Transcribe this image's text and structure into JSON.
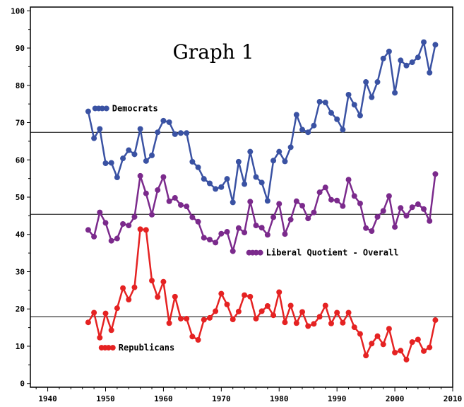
{
  "chart_data": {
    "type": "line",
    "title": "Graph 1",
    "xlabel": "",
    "ylabel": "",
    "xlim": [
      1937,
      2010
    ],
    "ylim": [
      -1,
      101
    ],
    "x_ticks": [
      1940,
      1950,
      1960,
      1970,
      1980,
      1990,
      2000,
      2010
    ],
    "y_ticks": [
      0,
      10,
      20,
      30,
      40,
      50,
      60,
      70,
      80,
      90,
      100
    ],
    "grid": false,
    "reference_lines": [
      67.4,
      45.4,
      17.9
    ],
    "x": [
      1947,
      1948,
      1949,
      1950,
      1951,
      1952,
      1953,
      1954,
      1955,
      1956,
      1957,
      1958,
      1959,
      1960,
      1961,
      1962,
      1963,
      1964,
      1965,
      1966,
      1967,
      1968,
      1969,
      1970,
      1971,
      1972,
      1973,
      1974,
      1975,
      1976,
      1977,
      1978,
      1979,
      1980,
      1981,
      1982,
      1983,
      1984,
      1985,
      1986,
      1987,
      1988,
      1989,
      1990,
      1991,
      1992,
      1993,
      1994,
      1995,
      1996,
      1997,
      1998,
      1999,
      2000,
      2001,
      2002,
      2003,
      2004,
      2005,
      2006,
      2007
    ],
    "series": [
      {
        "name": "Democrats",
        "color": "#3a52a3",
        "values": [
          73.0,
          65.8,
          68.3,
          59.1,
          59.2,
          55.3,
          60.4,
          62.6,
          61.5,
          68.3,
          59.7,
          61.2,
          67.4,
          70.5,
          70.1,
          66.9,
          67.2,
          67.2,
          59.5,
          58.0,
          54.9,
          53.7,
          52.2,
          52.7,
          54.9,
          48.6,
          59.5,
          53.5,
          62.2,
          55.4,
          53.9,
          49.0,
          59.8,
          62.2,
          59.6,
          63.4,
          72.1,
          68.1,
          67.4,
          69.2,
          75.6,
          75.4,
          72.6,
          70.9,
          68.1,
          77.5,
          74.8,
          71.9,
          80.9,
          76.8,
          80.9,
          87.2,
          89.1,
          78.0,
          86.7,
          85.3,
          86.2,
          87.5,
          91.6,
          83.4,
          90.9
        ],
        "legend_label": "Democrats"
      },
      {
        "name": "Liberal Quotient - Overall",
        "color": "#7b2a8c",
        "values": [
          41.2,
          39.4,
          45.9,
          43.1,
          38.3,
          38.9,
          42.8,
          42.4,
          44.7,
          55.7,
          51.0,
          45.3,
          51.9,
          55.4,
          48.9,
          49.8,
          47.9,
          47.5,
          44.6,
          43.4,
          39.1,
          38.6,
          37.8,
          40.2,
          40.7,
          35.5,
          41.7,
          40.5,
          48.8,
          42.4,
          41.8,
          39.9,
          44.6,
          48.2,
          40.1,
          44.0,
          48.9,
          47.7,
          44.3,
          45.9,
          51.3,
          52.6,
          49.3,
          49.1,
          47.6,
          54.7,
          50.3,
          48.3,
          41.7,
          40.9,
          44.7,
          46.3,
          50.3,
          42.0,
          47.1,
          45.0,
          47.3,
          48.1,
          46.8,
          43.6,
          56.2
        ],
        "legend_label": "Liberal Quotient - Overall"
      },
      {
        "name": "Republicans",
        "color": "#e52222",
        "values": [
          16.4,
          19.0,
          12.3,
          18.8,
          14.3,
          20.2,
          25.6,
          22.5,
          25.8,
          41.4,
          41.2,
          27.6,
          23.2,
          27.3,
          16.2,
          23.3,
          17.4,
          17.4,
          12.6,
          11.7,
          17.1,
          17.6,
          19.4,
          24.1,
          21.2,
          17.2,
          19.3,
          23.7,
          23.3,
          17.4,
          19.4,
          20.8,
          18.3,
          24.5,
          16.4,
          20.9,
          16.2,
          19.2,
          15.4,
          16.0,
          17.9,
          20.9,
          16.1,
          19.0,
          16.3,
          19.0,
          15.1,
          13.3,
          7.5,
          10.7,
          12.7,
          10.5,
          14.7,
          8.3,
          8.8,
          6.4,
          11.1,
          11.8,
          8.7,
          9.7,
          17.0
        ],
        "legend_label": "Republicans"
      }
    ],
    "annotations": [
      {
        "text": "Graph 1"
      }
    ]
  }
}
